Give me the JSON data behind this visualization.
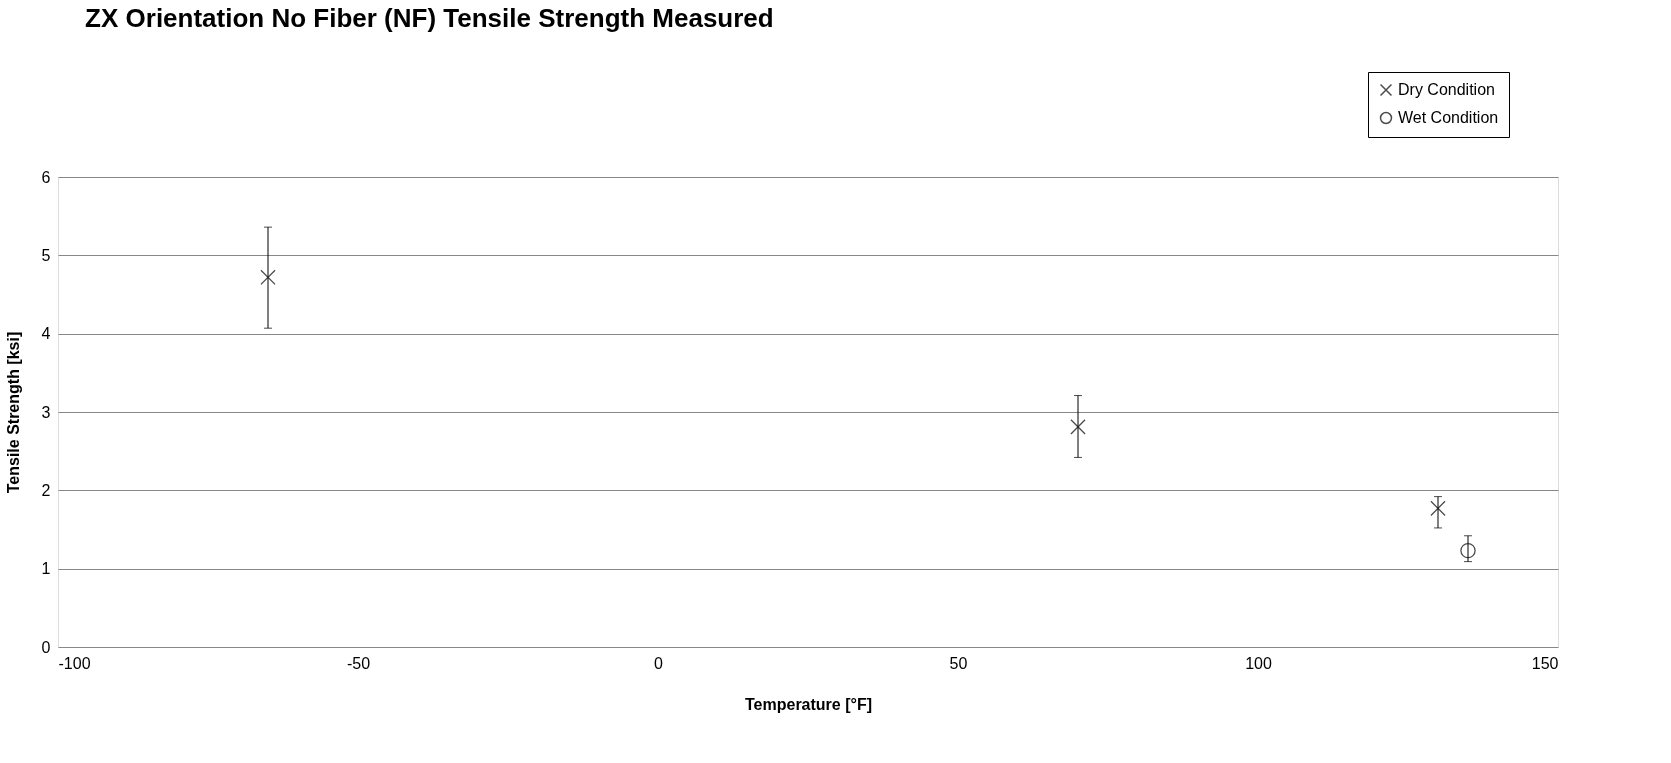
{
  "chart_data": {
    "type": "scatter",
    "title": "ZX Orientation No Fiber (NF) Tensile Strength Measured",
    "xlabel": "Temperature [°F]",
    "ylabel": "Tensile Strength [ksi]",
    "series": [
      {
        "name": "Dry Condition",
        "color": "#000000",
        "marker": "cross",
        "x": [
          -65,
          70,
          130
        ],
        "values": [
          4.72,
          2.81,
          1.77
        ],
        "errors": [
          [
            4.07,
            5.36
          ],
          [
            2.42,
            3.21
          ],
          [
            1.52,
            1.92
          ]
        ]
      },
      {
        "name": "Wet Condition",
        "color": "#000000",
        "marker": "circle",
        "x": [
          135
        ],
        "values": [
          1.23
        ],
        "errors": [
          [
            1.09,
            1.42
          ]
        ]
      }
    ],
    "xlim": [
      -100,
      150
    ],
    "xticks": [
      -100,
      -50,
      0,
      50,
      100,
      150
    ],
    "ylim": [
      0,
      6
    ],
    "yticks": [
      0,
      1,
      2,
      3,
      4,
      5,
      6
    ],
    "grid": "y",
    "legend": "top right"
  }
}
